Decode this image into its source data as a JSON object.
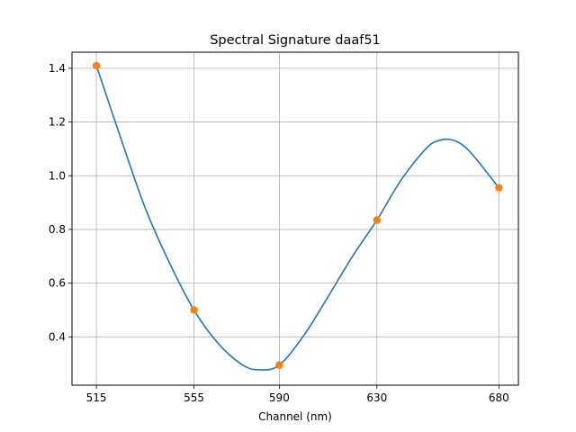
{
  "chart_data": {
    "type": "line",
    "title": "Spectral Signature daaf51",
    "xlabel": "Channel (nm)",
    "ylabel": "",
    "x_ticks": [
      "515",
      "555",
      "590",
      "630",
      "680"
    ],
    "y_ticks": [
      "0.4",
      "0.6",
      "0.8",
      "1.0",
      "1.2",
      "1.4"
    ],
    "x": [
      515,
      555,
      590,
      630,
      680
    ],
    "values": [
      1.41,
      0.5,
      0.295,
      0.835,
      0.955
    ],
    "xlim": [
      505,
      688
    ],
    "ylim": [
      0.22,
      1.46
    ],
    "curve": {
      "x": [
        515,
        525,
        535,
        545,
        555,
        565,
        575,
        582,
        590,
        600,
        610,
        620,
        630,
        640,
        650,
        655,
        660,
        665,
        670,
        680
      ],
      "y": [
        1.41,
        1.14,
        0.88,
        0.675,
        0.5,
        0.375,
        0.295,
        0.277,
        0.295,
        0.405,
        0.55,
        0.7,
        0.835,
        0.985,
        1.1,
        1.13,
        1.135,
        1.115,
        1.07,
        0.955
      ]
    },
    "grid": true,
    "colors": {
      "line": "#1f77b4",
      "markers": "#ff7f0e",
      "grid": "#b0b0b0",
      "axes": "#000000"
    }
  }
}
